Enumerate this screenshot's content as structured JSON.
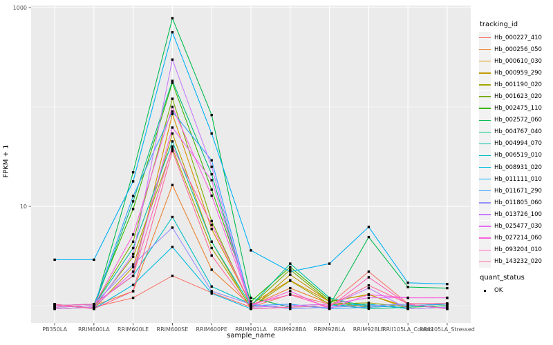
{
  "figure": {
    "y_axis_title": "FPKM + 1",
    "x_axis_title": "sample_name",
    "y_tick_labels": [
      "1000",
      "10"
    ],
    "legend": {
      "tracking_title": "tracking_id",
      "quant_title": "quant_status",
      "quant_ok_label": "OK"
    },
    "colors": {
      "panel_background": "#EBEBEB",
      "gridline": "#FFFFFF",
      "tick_mark": "#333333",
      "tick_label": "#4D4D4D",
      "point": "#000000",
      "legend_key_background": "#F2F2F2"
    }
  },
  "chart_data": {
    "type": "line",
    "title": "",
    "xlabel": "sample_name",
    "ylabel": "FPKM + 1",
    "yscale": "log10",
    "ylim": [
      0.65,
      1150
    ],
    "y_major_ticks": [
      1000,
      10
    ],
    "y_minor_ticks": [
      100,
      1
    ],
    "grid": true,
    "legend_position": "right",
    "point_shape": "square",
    "categories": [
      "PB350LA",
      "RRIM600LA",
      "RRIM600LE",
      "RRIM600SE",
      "RRIM600PE",
      "RRIM901LA",
      "RRIM928BA",
      "RRIM928LA",
      "RRIM928LE",
      "RRII105LA_Control",
      "RRII105LA_Stressed"
    ],
    "series": [
      {
        "name": "Hb_000227_410",
        "color": "#F8766D",
        "values": [
          0.93,
          0.965,
          1.2,
          2.0,
          1.35,
          0.965,
          1.3,
          1.035,
          2.2,
          1.05,
          1.05
        ]
      },
      {
        "name": "Hb_000256_050",
        "color": "#EA8331",
        "values": [
          0.965,
          1.0,
          1.4,
          16.4,
          2.3,
          1.0,
          1.5,
          1.05,
          0.965,
          1.0,
          1.035
        ]
      },
      {
        "name": "Hb_000610_030",
        "color": "#D89000",
        "values": [
          1.0,
          1.035,
          2.0,
          85,
          5.9,
          1.035,
          1.8,
          1.1,
          1.3,
          0.93,
          0.965
        ]
      },
      {
        "name": "Hb_000959_290",
        "color": "#C09B00",
        "values": [
          1.035,
          0.93,
          2.45,
          54,
          4.4,
          0.93,
          2.05,
          1.1,
          1.29,
          0.965,
          1.0
        ]
      },
      {
        "name": "Hb_001190_020",
        "color": "#A3A500",
        "values": [
          0.93,
          0.965,
          3.1,
          38,
          3.8,
          0.965,
          1.78,
          1.035,
          1.07,
          0.965,
          1.0
        ]
      },
      {
        "name": "Hb_001623_020",
        "color": "#7CAE00",
        "values": [
          0.965,
          1.0,
          4.4,
          121,
          7.1,
          1.0,
          2.3,
          1.1,
          0.965,
          1.0,
          1.035
        ]
      },
      {
        "name": "Hb_002475_110",
        "color": "#39B600",
        "values": [
          1.0,
          1.035,
          9.4,
          175,
          14.7,
          1.1,
          2.45,
          1.15,
          1.0,
          1.035,
          0.93
        ]
      },
      {
        "name": "Hb_002572_060",
        "color": "#00BB4E",
        "values": [
          1.035,
          0.93,
          22,
          780,
          83,
          1.2,
          0.965,
          1.0,
          4.9,
          1.54,
          1.5
        ]
      },
      {
        "name": "Hb_004767_040",
        "color": "#00BF7D",
        "values": [
          0.93,
          0.965,
          11.2,
          183,
          21,
          0.965,
          1.0,
          1.035,
          0.93,
          0.965,
          1.0
        ]
      },
      {
        "name": "Hb_004994_070",
        "color": "#00C1A3",
        "values": [
          0.965,
          1.0,
          3.8,
          45,
          4.4,
          1.0,
          2.65,
          1.2,
          0.965,
          1.0,
          1.035
        ]
      },
      {
        "name": "Hb_006519_010",
        "color": "#00BFC4",
        "values": [
          1.0,
          1.035,
          2.0,
          7.8,
          1.56,
          1.035,
          0.93,
          0.965,
          1.0,
          1.035,
          0.93
        ]
      },
      {
        "name": "Hb_008931_020",
        "color": "#00BAE0",
        "values": [
          1.035,
          0.93,
          1.62,
          3.9,
          1.33,
          0.93,
          0.965,
          1.0,
          1.035,
          0.93,
          0.965
        ]
      },
      {
        "name": "Hb_011111_010",
        "color": "#00B0F6",
        "values": [
          2.9,
          2.9,
          17.8,
          565,
          54,
          3.6,
          2.2,
          2.65,
          6.2,
          1.7,
          1.65
        ]
      },
      {
        "name": "Hb_011671_290",
        "color": "#35A2FF",
        "values": [
          0.965,
          1.0,
          12.7,
          90,
          29,
          1.0,
          1.035,
          0.93,
          0.965,
          1.0,
          1.035
        ]
      },
      {
        "name": "Hb_011805_060",
        "color": "#9590FF",
        "values": [
          1.0,
          1.035,
          2.6,
          6.1,
          1.4,
          1.035,
          0.93,
          0.965,
          1.0,
          1.035,
          0.93
        ]
      },
      {
        "name": "Hb_013726_100",
        "color": "#C77CFF",
        "values": [
          1.035,
          0.93,
          3.3,
          300,
          25,
          0.93,
          0.965,
          1.0,
          1.5,
          0.93,
          0.965
        ]
      },
      {
        "name": "Hb_025477_030",
        "color": "#E76BF3",
        "values": [
          0.93,
          0.965,
          2.2,
          62,
          18.3,
          0.965,
          1.0,
          1.035,
          1.2,
          1.2,
          1.2
        ]
      },
      {
        "name": "Hb_027214_060",
        "color": "#FA62DB",
        "values": [
          0.965,
          1.0,
          5.2,
          100,
          12.8,
          1.0,
          1.4,
          0.93,
          1.29,
          1.2,
          1.2
        ]
      },
      {
        "name": "Hb_093204_010",
        "color": "#FF62BC",
        "values": [
          1.0,
          1.035,
          2.0,
          40,
          6.5,
          1.035,
          1.29,
          0.965,
          1.93,
          1.035,
          0.93
        ]
      },
      {
        "name": "Hb_143232_020",
        "color": "#FF6A98",
        "values": [
          1.035,
          0.93,
          1.4,
          36,
          3.2,
          0.93,
          0.965,
          1.0,
          1.6,
          1.05,
          1.05
        ]
      }
    ]
  }
}
